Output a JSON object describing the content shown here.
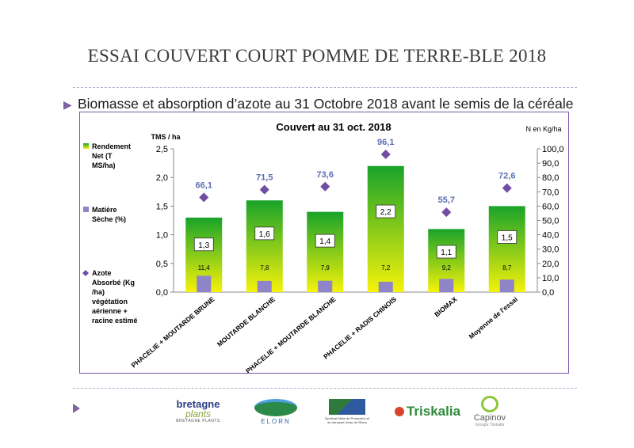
{
  "slide": {
    "title": "ESSAI COUVERT COURT POMME DE TERRE-BLE 2018",
    "subtitle": "Biomasse  et absorption d’azote au 31 Octobre 2018 avant le semis de la céréale"
  },
  "logos": {
    "bretagne_plants": {
      "line1": "bretagne",
      "line2": "plants",
      "line3": "BRETAGNE PLANTS"
    },
    "elorn": {
      "text": "ELORN"
    },
    "bassin": {
      "text": "Syndicat Mixte de Production et de transport d'eau de l'Elorn"
    },
    "triskalia": {
      "text": "Triskalia"
    },
    "capinov": {
      "text": "Capinov",
      "sub": "Groupe Triskalia"
    }
  },
  "colors": {
    "bar_top": "#19a32a",
    "bar_bottom": "#f6f20a",
    "dry_matter": "#8f84c8",
    "nitrogen": "#6f4ea3",
    "frame": "#7b58a8",
    "label_blue": "#5b6fb4"
  },
  "chart_data": {
    "type": "bar",
    "title": "Couvert  au 31 oct. 2018",
    "ylabel_left": "TMS / ha",
    "ylabel_right": "N en Kg/ha",
    "ylim_left": [
      0,
      2.5
    ],
    "ylim_right": [
      0,
      100
    ],
    "yticks_left": [
      "0,0",
      "0,5",
      "1,0",
      "1,5",
      "2,0",
      "2,5"
    ],
    "yticks_right": [
      "0,0",
      "10,0",
      "20,0",
      "30,0",
      "40,0",
      "50,0",
      "60,0",
      "70,0",
      "80,0",
      "90,0",
      "100,0"
    ],
    "grid": false,
    "legend_position": "left",
    "categories": [
      "PHACELIE + MOUTARDE BRUNE",
      "MOUTARDE BLANCHE",
      "PHACELIE + MOUTARDE BLANCHE",
      "PHACELIE + RADIS CHINOIS",
      "BIOMAX",
      "Moyenne de l'essai"
    ],
    "series": [
      {
        "name": "Rendement Net (T MS/ha)",
        "axis": "left",
        "kind": "bar",
        "values": [
          1.3,
          1.6,
          1.4,
          2.2,
          1.1,
          1.5
        ],
        "labels": [
          "1,3",
          "1,6",
          "1,4",
          "2,2",
          "1,1",
          "1,5"
        ]
      },
      {
        "name": "Matière Sèche (%)",
        "axis": "right",
        "kind": "bar",
        "values": [
          11.4,
          7.8,
          7.9,
          7.2,
          9.2,
          8.7
        ],
        "labels": [
          "11,4",
          "7,8",
          "7,9",
          "7,2",
          "9,2",
          "8,7"
        ]
      },
      {
        "name": "Azote Absorbé (Kg /ha) végétation aérienne + racine estimé",
        "axis": "right",
        "kind": "marker",
        "values": [
          66.1,
          71.5,
          73.6,
          96.1,
          55.7,
          72.6
        ],
        "labels": [
          "66,1",
          "71,5",
          "73,6",
          "96,1",
          "55,7",
          "72,6"
        ]
      }
    ],
    "legend": [
      {
        "key": "yield",
        "lines": [
          "Rendement",
          "Net (T",
          "MS/ha)"
        ]
      },
      {
        "key": "dm",
        "lines": [
          "Matière",
          "Sèche (%)"
        ]
      },
      {
        "key": "n",
        "lines": [
          "Azote",
          "Absorbé (Kg",
          "/ha)",
          "végétation",
          "aérienne +",
          "racine estimé"
        ]
      }
    ]
  }
}
